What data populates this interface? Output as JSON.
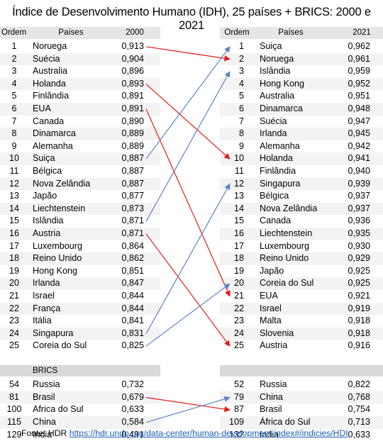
{
  "title": "Índice de Desenvolvimento Humano (IDH), 25 países + BRICS: 2000 e 2021",
  "headers": {
    "left_rank": "Ordem",
    "left_country": "Países",
    "left_value": "2000",
    "right_rank": "Ordem",
    "right_country": "Países",
    "right_value": "2021"
  },
  "brics_label": "BRICS",
  "source_prefix": "Fonte: HDR ",
  "source_link": "https://hdr.undp.org/data-center/human-development-index#/indicies/HDI",
  "colors": {
    "red": "#e8191b",
    "blue": "#5b84c4",
    "header_bg": "#e6e6e6",
    "alt_row": "#f3f3f3"
  },
  "chart_data": {
    "type": "table",
    "left_2000": [
      {
        "rank": "1",
        "country": "Noruega",
        "value": "0,913"
      },
      {
        "rank": "2",
        "country": "Suécia",
        "value": "0,904"
      },
      {
        "rank": "3",
        "country": "Australia",
        "value": "0,896"
      },
      {
        "rank": "4",
        "country": "Holanda",
        "value": "0,893"
      },
      {
        "rank": "5",
        "country": "Finlândia",
        "value": "0,891"
      },
      {
        "rank": "6",
        "country": "EUA",
        "value": "0,891"
      },
      {
        "rank": "7",
        "country": "Canada",
        "value": "0,890"
      },
      {
        "rank": "8",
        "country": "Dinamarca",
        "value": "0,889"
      },
      {
        "rank": "9",
        "country": "Alemanha",
        "value": "0,889"
      },
      {
        "rank": "10",
        "country": "Suiça",
        "value": "0,887"
      },
      {
        "rank": "11",
        "country": "Bélgica",
        "value": "0,887"
      },
      {
        "rank": "12",
        "country": "Nova Zelândia",
        "value": "0,887"
      },
      {
        "rank": "13",
        "country": "Japão",
        "value": "0,877"
      },
      {
        "rank": "14",
        "country": "Liechtenstein",
        "value": "0,873"
      },
      {
        "rank": "15",
        "country": "Islândia",
        "value": "0,871"
      },
      {
        "rank": "16",
        "country": "Austria",
        "value": "0,871"
      },
      {
        "rank": "17",
        "country": "Luxembourg",
        "value": "0,864"
      },
      {
        "rank": "18",
        "country": "Reino Unido",
        "value": "0,862"
      },
      {
        "rank": "19",
        "country": "Hong Kong",
        "value": "0,851"
      },
      {
        "rank": "20",
        "country": "Irlanda",
        "value": "0,847"
      },
      {
        "rank": "21",
        "country": "Israel",
        "value": "0,844"
      },
      {
        "rank": "22",
        "country": "França",
        "value": "0,844"
      },
      {
        "rank": "23",
        "country": "Itália",
        "value": "0,841"
      },
      {
        "rank": "24",
        "country": "Singapura",
        "value": "0,831"
      },
      {
        "rank": "25",
        "country": "Coreia do Sul",
        "value": "0,825"
      }
    ],
    "left_brics_2000": [
      {
        "rank": "54",
        "country": "Russia",
        "value": "0,732"
      },
      {
        "rank": "81",
        "country": "Brasil",
        "value": "0,679"
      },
      {
        "rank": "100",
        "country": "Africa do Sul",
        "value": "0,633"
      },
      {
        "rank": "115",
        "country": "China",
        "value": "0,584"
      },
      {
        "rank": "129",
        "country": "India",
        "value": "0,491"
      }
    ],
    "right_2021": [
      {
        "rank": "1",
        "country": "Suiça",
        "value": "0,962"
      },
      {
        "rank": "2",
        "country": "Noruega",
        "value": "0,961"
      },
      {
        "rank": "3",
        "country": "Islândia",
        "value": "0,959"
      },
      {
        "rank": "4",
        "country": "Hong Kong",
        "value": "0,952"
      },
      {
        "rank": "5",
        "country": "Australia",
        "value": "0,951"
      },
      {
        "rank": "6",
        "country": "Dinamarca",
        "value": "0,948"
      },
      {
        "rank": "7",
        "country": "Suécia",
        "value": "0,947"
      },
      {
        "rank": "8",
        "country": "Irlanda",
        "value": "0,945"
      },
      {
        "rank": "9",
        "country": "Alemanha",
        "value": "0,942"
      },
      {
        "rank": "10",
        "country": "Holanda",
        "value": "0,941"
      },
      {
        "rank": "11",
        "country": "Finlândia",
        "value": "0,940"
      },
      {
        "rank": "12",
        "country": "Singapura",
        "value": "0,939"
      },
      {
        "rank": "13",
        "country": "Bélgica",
        "value": "0,937"
      },
      {
        "rank": "14",
        "country": "Nova Zelândia",
        "value": "0,937"
      },
      {
        "rank": "15",
        "country": "Canada",
        "value": "0,936"
      },
      {
        "rank": "16",
        "country": "Liechtenstein",
        "value": "0,935"
      },
      {
        "rank": "17",
        "country": "Luxembourg",
        "value": "0,930"
      },
      {
        "rank": "18",
        "country": "Reino Unido",
        "value": "0,929"
      },
      {
        "rank": "19",
        "country": "Japão",
        "value": "0,925"
      },
      {
        "rank": "20",
        "country": "Coreia do Sul",
        "value": "0,925"
      },
      {
        "rank": "21",
        "country": "EUA",
        "value": "0,921"
      },
      {
        "rank": "22",
        "country": "Israel",
        "value": "0,919"
      },
      {
        "rank": "23",
        "country": "Malta",
        "value": "0,918"
      },
      {
        "rank": "24",
        "country": "Slovenia",
        "value": "0,918"
      },
      {
        "rank": "25",
        "country": "Austria",
        "value": "0,916"
      }
    ],
    "right_brics_2021": [
      {
        "rank": "52",
        "country": "Russia",
        "value": "0,822"
      },
      {
        "rank": "79",
        "country": "China",
        "value": "0,768"
      },
      {
        "rank": "87",
        "country": "Brasil",
        "value": "0,754"
      },
      {
        "rank": "109",
        "country": "África do Sul",
        "value": "0,713"
      },
      {
        "rank": "132",
        "country": "India",
        "value": "0,633"
      }
    ],
    "arrows": [
      {
        "from_rank": "1",
        "to_rank": "2",
        "color": "red"
      },
      {
        "from_rank": "4",
        "to_rank": "10",
        "color": "red"
      },
      {
        "from_rank": "6",
        "to_rank": "21",
        "color": "red"
      },
      {
        "from_rank": "16",
        "to_rank": "25",
        "color": "red"
      },
      {
        "from_rank": "10",
        "to_rank": "1",
        "color": "blue"
      },
      {
        "from_rank": "15",
        "to_rank": "3",
        "color": "blue"
      },
      {
        "from_rank": "24",
        "to_rank": "12",
        "color": "blue"
      },
      {
        "from_rank": "25",
        "to_rank": "20",
        "color": "blue"
      },
      {
        "from_rank": "81",
        "to_rank": "87",
        "color": "red"
      },
      {
        "from_rank": "115",
        "to_rank": "79",
        "color": "blue"
      }
    ]
  }
}
